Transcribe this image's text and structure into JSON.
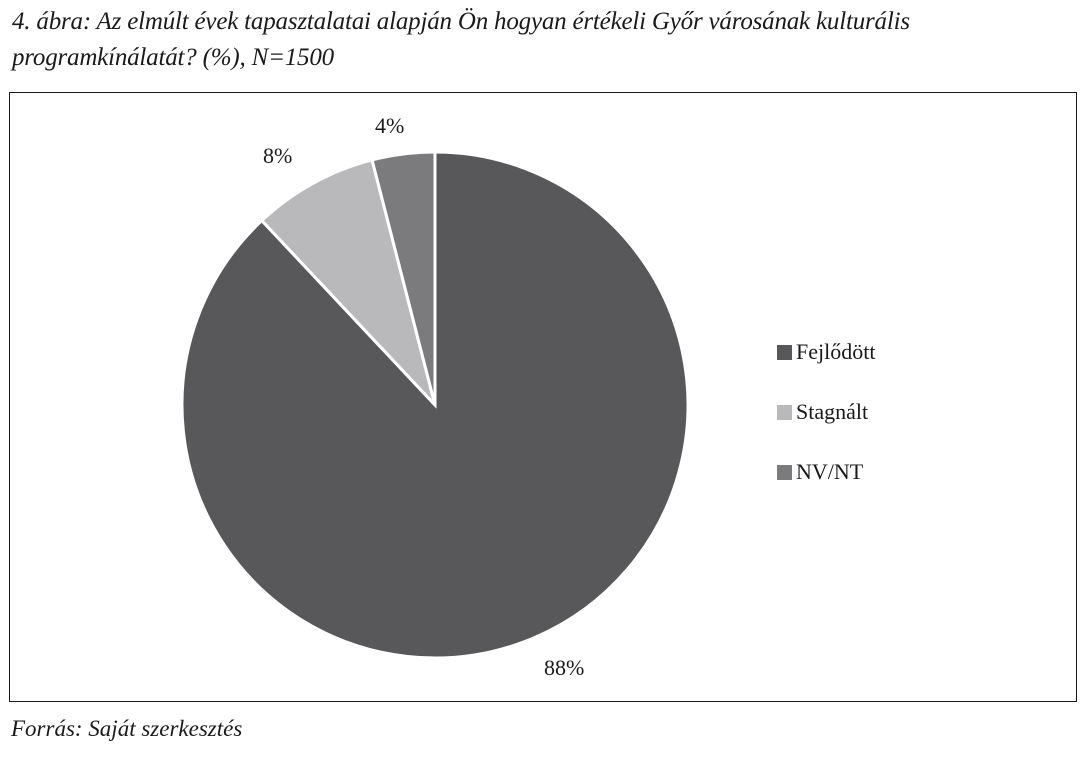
{
  "title": "4. ábra: Az elmúlt évek tapasztalatai alapján Ön hogyan értékeli Győr városának kulturális programkínálatát? (%), N=1500",
  "source": "Forrás: Saját szerkesztés",
  "labels": {
    "fejlodott": "88%",
    "stagnalt": "8%",
    "nvnt": "4%"
  },
  "legend": [
    {
      "label": "Fejlődött",
      "color": "#58585a"
    },
    {
      "label": "Stagnált",
      "color": "#b9b9bb"
    },
    {
      "label": "NV/NT",
      "color": "#7b7b7d"
    }
  ],
  "chart_data": {
    "type": "pie",
    "title": "4. ábra: Az elmúlt évek tapasztalatai alapján Ön hogyan értékeli Győr városának kulturális programkínálatát? (%), N=1500",
    "categories": [
      "Fejlődött",
      "Stagnált",
      "NV/NT"
    ],
    "values": [
      88,
      8,
      4
    ],
    "unit": "%",
    "colors": [
      "#58585a",
      "#b9b9bb",
      "#7b7b7d"
    ],
    "data_labels": [
      "88%",
      "8%",
      "4%"
    ],
    "legend_position": "right",
    "start_angle": "12 o'clock, clockwise",
    "n": 1500,
    "source": "Forrás: Saját szerkesztés"
  }
}
